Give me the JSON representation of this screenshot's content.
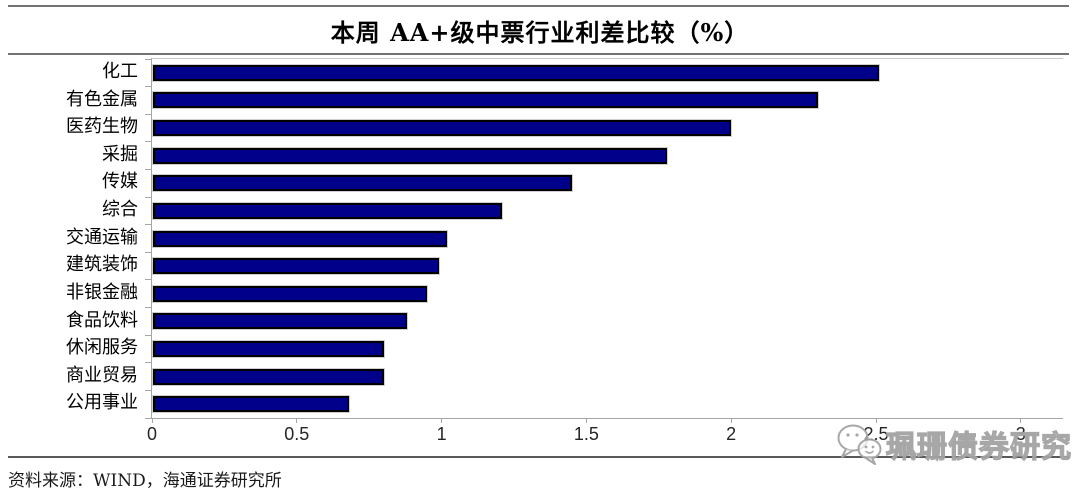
{
  "title": "本周 AA+级中票行业利差比较（%）",
  "chart_data": {
    "type": "bar",
    "orientation": "horizontal",
    "title": "本周 AA+级中票行业利差比较（%）",
    "categories": [
      "化工",
      "有色金属",
      "医药生物",
      "采掘",
      "传媒",
      "综合",
      "交通运输",
      "建筑装饰",
      "非银金融",
      "食品饮料",
      "休闲服务",
      "商业贸易",
      "公用事业"
    ],
    "values": [
      2.51,
      2.3,
      2.0,
      1.78,
      1.45,
      1.21,
      1.02,
      0.99,
      0.95,
      0.88,
      0.8,
      0.8,
      0.68
    ],
    "xlabel": "",
    "ylabel": "",
    "xlim": [
      0,
      3
    ],
    "xticks": [
      0,
      0.5,
      1,
      1.5,
      2,
      2.5,
      3
    ],
    "xtick_labels": [
      "0",
      "0.5",
      "1",
      "1.5",
      "2",
      "2.5",
      "3"
    ],
    "grid": false,
    "legend": null,
    "bar_color": "#00008B",
    "bar_border_color": "#000000"
  },
  "footer": {
    "source": "资料来源：WIND，海通证券研究所"
  },
  "watermark": {
    "text": "珮珊债券研究",
    "logo": "wechat-bubbles-icon",
    "color": "#a3a3a3"
  }
}
